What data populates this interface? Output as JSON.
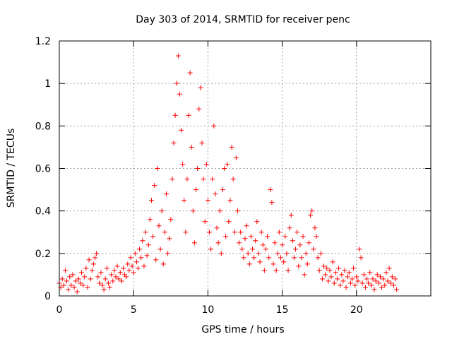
{
  "chart_data": {
    "type": "scatter",
    "title": "Day 303 of 2014, SRMTID for receiver penc",
    "xlabel": "GPS time / hours",
    "ylabel": "SRMTID / TECUs",
    "xlim": [
      0,
      25
    ],
    "ylim": [
      0,
      1.2
    ],
    "x_ticks": [
      0,
      5,
      10,
      15,
      20
    ],
    "x_tick_labels": [
      "0",
      "5",
      "10",
      "15",
      "20"
    ],
    "y_ticks": [
      0,
      0.2,
      0.4,
      0.6,
      0.8,
      1.0,
      1.2
    ],
    "y_tick_labels": [
      "0",
      "0.2",
      "0.4",
      "0.6",
      "0.8",
      "1",
      "1.2"
    ],
    "grid": true,
    "marker": "plus",
    "marker_color": "#ff0000",
    "series": [
      {
        "name": "SRMTID",
        "points": [
          [
            0.0,
            0.06
          ],
          [
            0.1,
            0.04
          ],
          [
            0.2,
            0.08
          ],
          [
            0.3,
            0.05
          ],
          [
            0.4,
            0.12
          ],
          [
            0.5,
            0.07
          ],
          [
            0.6,
            0.03
          ],
          [
            0.7,
            0.09
          ],
          [
            0.8,
            0.05
          ],
          [
            0.9,
            0.1
          ],
          [
            1.0,
            0.04
          ],
          [
            1.1,
            0.07
          ],
          [
            1.2,
            0.02
          ],
          [
            1.3,
            0.08
          ],
          [
            1.4,
            0.06
          ],
          [
            1.5,
            0.11
          ],
          [
            1.6,
            0.05
          ],
          [
            1.7,
            0.09
          ],
          [
            1.8,
            0.13
          ],
          [
            1.9,
            0.04
          ],
          [
            2.0,
            0.17
          ],
          [
            2.1,
            0.08
          ],
          [
            2.2,
            0.12
          ],
          [
            2.3,
            0.15
          ],
          [
            2.4,
            0.18
          ],
          [
            2.5,
            0.2
          ],
          [
            2.6,
            0.09
          ],
          [
            2.7,
            0.06
          ],
          [
            2.8,
            0.11
          ],
          [
            2.9,
            0.05
          ],
          [
            3.0,
            0.03
          ],
          [
            3.1,
            0.08
          ],
          [
            3.2,
            0.13
          ],
          [
            3.3,
            0.06
          ],
          [
            3.4,
            0.04
          ],
          [
            3.5,
            0.1
          ],
          [
            3.6,
            0.07
          ],
          [
            3.7,
            0.12
          ],
          [
            3.8,
            0.09
          ],
          [
            3.9,
            0.14
          ],
          [
            4.0,
            0.08
          ],
          [
            4.1,
            0.11
          ],
          [
            4.2,
            0.07
          ],
          [
            4.3,
            0.13
          ],
          [
            4.4,
            0.1
          ],
          [
            4.5,
            0.09
          ],
          [
            4.6,
            0.15
          ],
          [
            4.7,
            0.12
          ],
          [
            4.8,
            0.18
          ],
          [
            4.9,
            0.14
          ],
          [
            5.0,
            0.11
          ],
          [
            5.1,
            0.2
          ],
          [
            5.2,
            0.16
          ],
          [
            5.3,
            0.13
          ],
          [
            5.4,
            0.22
          ],
          [
            5.5,
            0.18
          ],
          [
            5.6,
            0.26
          ],
          [
            5.7,
            0.14
          ],
          [
            5.8,
            0.3
          ],
          [
            5.9,
            0.19
          ],
          [
            6.0,
            0.24
          ],
          [
            6.1,
            0.36
          ],
          [
            6.2,
            0.45
          ],
          [
            6.3,
            0.28
          ],
          [
            6.4,
            0.52
          ],
          [
            6.5,
            0.17
          ],
          [
            6.6,
            0.6
          ],
          [
            6.7,
            0.33
          ],
          [
            6.8,
            0.22
          ],
          [
            6.9,
            0.4
          ],
          [
            7.0,
            0.15
          ],
          [
            7.1,
            0.3
          ],
          [
            7.2,
            0.48
          ],
          [
            7.3,
            0.2
          ],
          [
            7.4,
            0.27
          ],
          [
            7.5,
            0.36
          ],
          [
            7.6,
            0.55
          ],
          [
            7.7,
            0.72
          ],
          [
            7.8,
            0.85
          ],
          [
            7.9,
            1.0
          ],
          [
            8.0,
            1.13
          ],
          [
            8.1,
            0.95
          ],
          [
            8.2,
            0.78
          ],
          [
            8.3,
            0.62
          ],
          [
            8.4,
            0.45
          ],
          [
            8.5,
            0.3
          ],
          [
            8.6,
            0.55
          ],
          [
            8.7,
            0.85
          ],
          [
            8.8,
            1.05
          ],
          [
            8.9,
            0.7
          ],
          [
            9.0,
            0.4
          ],
          [
            9.1,
            0.25
          ],
          [
            9.2,
            0.5
          ],
          [
            9.3,
            0.6
          ],
          [
            9.4,
            0.88
          ],
          [
            9.5,
            0.98
          ],
          [
            9.6,
            0.72
          ],
          [
            9.7,
            0.55
          ],
          [
            9.8,
            0.35
          ],
          [
            9.9,
            0.62
          ],
          [
            10.0,
            0.45
          ],
          [
            10.1,
            0.3
          ],
          [
            10.2,
            0.22
          ],
          [
            10.3,
            0.55
          ],
          [
            10.4,
            0.8
          ],
          [
            10.5,
            0.48
          ],
          [
            10.6,
            0.32
          ],
          [
            10.7,
            0.25
          ],
          [
            10.8,
            0.4
          ],
          [
            10.9,
            0.2
          ],
          [
            11.0,
            0.5
          ],
          [
            11.1,
            0.6
          ],
          [
            11.2,
            0.28
          ],
          [
            11.3,
            0.62
          ],
          [
            11.4,
            0.35
          ],
          [
            11.5,
            0.45
          ],
          [
            11.6,
            0.7
          ],
          [
            11.7,
            0.55
          ],
          [
            11.8,
            0.3
          ],
          [
            11.9,
            0.65
          ],
          [
            12.0,
            0.4
          ],
          [
            12.1,
            0.25
          ],
          [
            12.2,
            0.3
          ],
          [
            12.3,
            0.22
          ],
          [
            12.4,
            0.18
          ],
          [
            12.5,
            0.27
          ],
          [
            12.6,
            0.33
          ],
          [
            12.7,
            0.2
          ],
          [
            12.8,
            0.15
          ],
          [
            12.9,
            0.28
          ],
          [
            13.0,
            0.22
          ],
          [
            13.1,
            0.18
          ],
          [
            13.2,
            0.26
          ],
          [
            13.3,
            0.35
          ],
          [
            13.4,
            0.2
          ],
          [
            13.5,
            0.16
          ],
          [
            13.6,
            0.3
          ],
          [
            13.7,
            0.24
          ],
          [
            13.8,
            0.12
          ],
          [
            13.9,
            0.22
          ],
          [
            14.0,
            0.28
          ],
          [
            14.1,
            0.18
          ],
          [
            14.2,
            0.5
          ],
          [
            14.3,
            0.44
          ],
          [
            14.4,
            0.15
          ],
          [
            14.5,
            0.25
          ],
          [
            14.6,
            0.12
          ],
          [
            14.7,
            0.2
          ],
          [
            14.8,
            0.3
          ],
          [
            14.9,
            0.18
          ],
          [
            15.0,
            0.24
          ],
          [
            15.1,
            0.16
          ],
          [
            15.2,
            0.28
          ],
          [
            15.3,
            0.2
          ],
          [
            15.4,
            0.12
          ],
          [
            15.5,
            0.32
          ],
          [
            15.6,
            0.38
          ],
          [
            15.7,
            0.26
          ],
          [
            15.8,
            0.18
          ],
          [
            15.9,
            0.22
          ],
          [
            16.0,
            0.3
          ],
          [
            16.1,
            0.14
          ],
          [
            16.2,
            0.24
          ],
          [
            16.3,
            0.18
          ],
          [
            16.4,
            0.28
          ],
          [
            16.5,
            0.1
          ],
          [
            16.6,
            0.2
          ],
          [
            16.7,
            0.15
          ],
          [
            16.8,
            0.25
          ],
          [
            16.9,
            0.38
          ],
          [
            17.0,
            0.4
          ],
          [
            17.1,
            0.22
          ],
          [
            17.2,
            0.32
          ],
          [
            17.3,
            0.28
          ],
          [
            17.4,
            0.18
          ],
          [
            17.5,
            0.12
          ],
          [
            17.6,
            0.2
          ],
          [
            17.7,
            0.08
          ],
          [
            17.8,
            0.14
          ],
          [
            17.9,
            0.1
          ],
          [
            18.0,
            0.13
          ],
          [
            18.1,
            0.07
          ],
          [
            18.2,
            0.12
          ],
          [
            18.3,
            0.09
          ],
          [
            18.4,
            0.16
          ],
          [
            18.5,
            0.06
          ],
          [
            18.6,
            0.11
          ],
          [
            18.7,
            0.08
          ],
          [
            18.8,
            0.13
          ],
          [
            18.9,
            0.05
          ],
          [
            19.0,
            0.1
          ],
          [
            19.1,
            0.07
          ],
          [
            19.2,
            0.12
          ],
          [
            19.3,
            0.04
          ],
          [
            19.4,
            0.09
          ],
          [
            19.5,
            0.11
          ],
          [
            19.6,
            0.06
          ],
          [
            19.7,
            0.08
          ],
          [
            19.8,
            0.13
          ],
          [
            19.9,
            0.05
          ],
          [
            20.0,
            0.09
          ],
          [
            20.1,
            0.07
          ],
          [
            20.2,
            0.22
          ],
          [
            20.3,
            0.18
          ],
          [
            20.4,
            0.06
          ],
          [
            20.5,
            0.1
          ],
          [
            20.6,
            0.04
          ],
          [
            20.7,
            0.08
          ],
          [
            20.8,
            0.06
          ],
          [
            20.9,
            0.11
          ],
          [
            21.0,
            0.05
          ],
          [
            21.1,
            0.08
          ],
          [
            21.2,
            0.03
          ],
          [
            21.3,
            0.07
          ],
          [
            21.4,
            0.1
          ],
          [
            21.5,
            0.06
          ],
          [
            21.6,
            0.09
          ],
          [
            21.7,
            0.04
          ],
          [
            21.8,
            0.08
          ],
          [
            21.9,
            0.05
          ],
          [
            22.0,
            0.11
          ],
          [
            22.1,
            0.07
          ],
          [
            22.2,
            0.13
          ],
          [
            22.3,
            0.06
          ],
          [
            22.4,
            0.09
          ],
          [
            22.5,
            0.05
          ],
          [
            22.6,
            0.08
          ],
          [
            22.7,
            0.03
          ]
        ]
      }
    ]
  }
}
